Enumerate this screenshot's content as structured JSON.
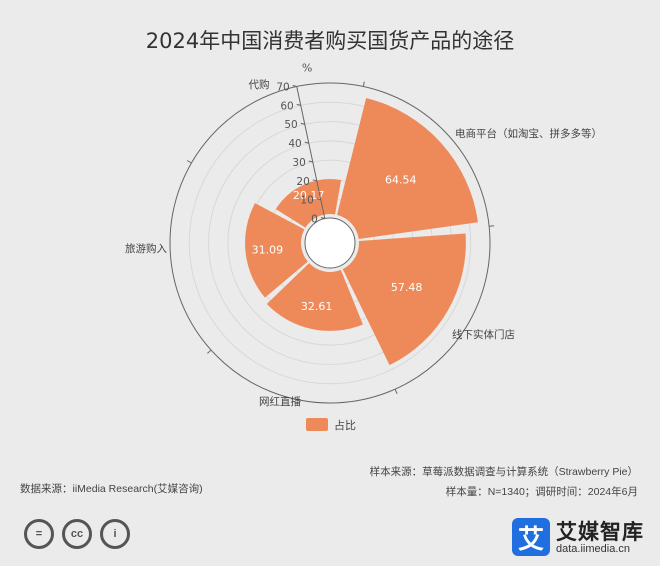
{
  "chart_data": {
    "type": "polar-bar",
    "title": "2024年中国消费者购买国货产品的途径",
    "radial_axis_unit": "%",
    "radial_ticks": [
      0,
      10,
      20,
      30,
      40,
      50,
      60,
      70
    ],
    "radial_max": 70,
    "categories": [
      "电商平台（如淘宝、拼多多等）",
      "线下实体门店",
      "网红直播",
      "旅游购入",
      "代购"
    ],
    "series": [
      {
        "name": "占比",
        "values": [
          64.54,
          57.48,
          32.61,
          31.09,
          20.17
        ],
        "color": "#ee8a5a"
      }
    ],
    "legend_position": "bottom",
    "grid": true
  },
  "footer": {
    "data_source": "数据来源：iiMedia Research(艾媒咨询)",
    "sample_source": "样本来源：草莓派数据调查与计算系统（Strawberry Pie）",
    "sample_info": "样本量：N=1340；调研时间：2024年6月"
  },
  "license_icons": [
    {
      "name": "equals-icon",
      "glyph": "="
    },
    {
      "name": "cc-icon",
      "glyph": "cc"
    },
    {
      "name": "person-icon",
      "glyph": "i"
    }
  ],
  "logo": {
    "mark": "艾",
    "name": "艾媒智库",
    "url": "data.iimedia.cn",
    "color": "#1f6fe0"
  }
}
